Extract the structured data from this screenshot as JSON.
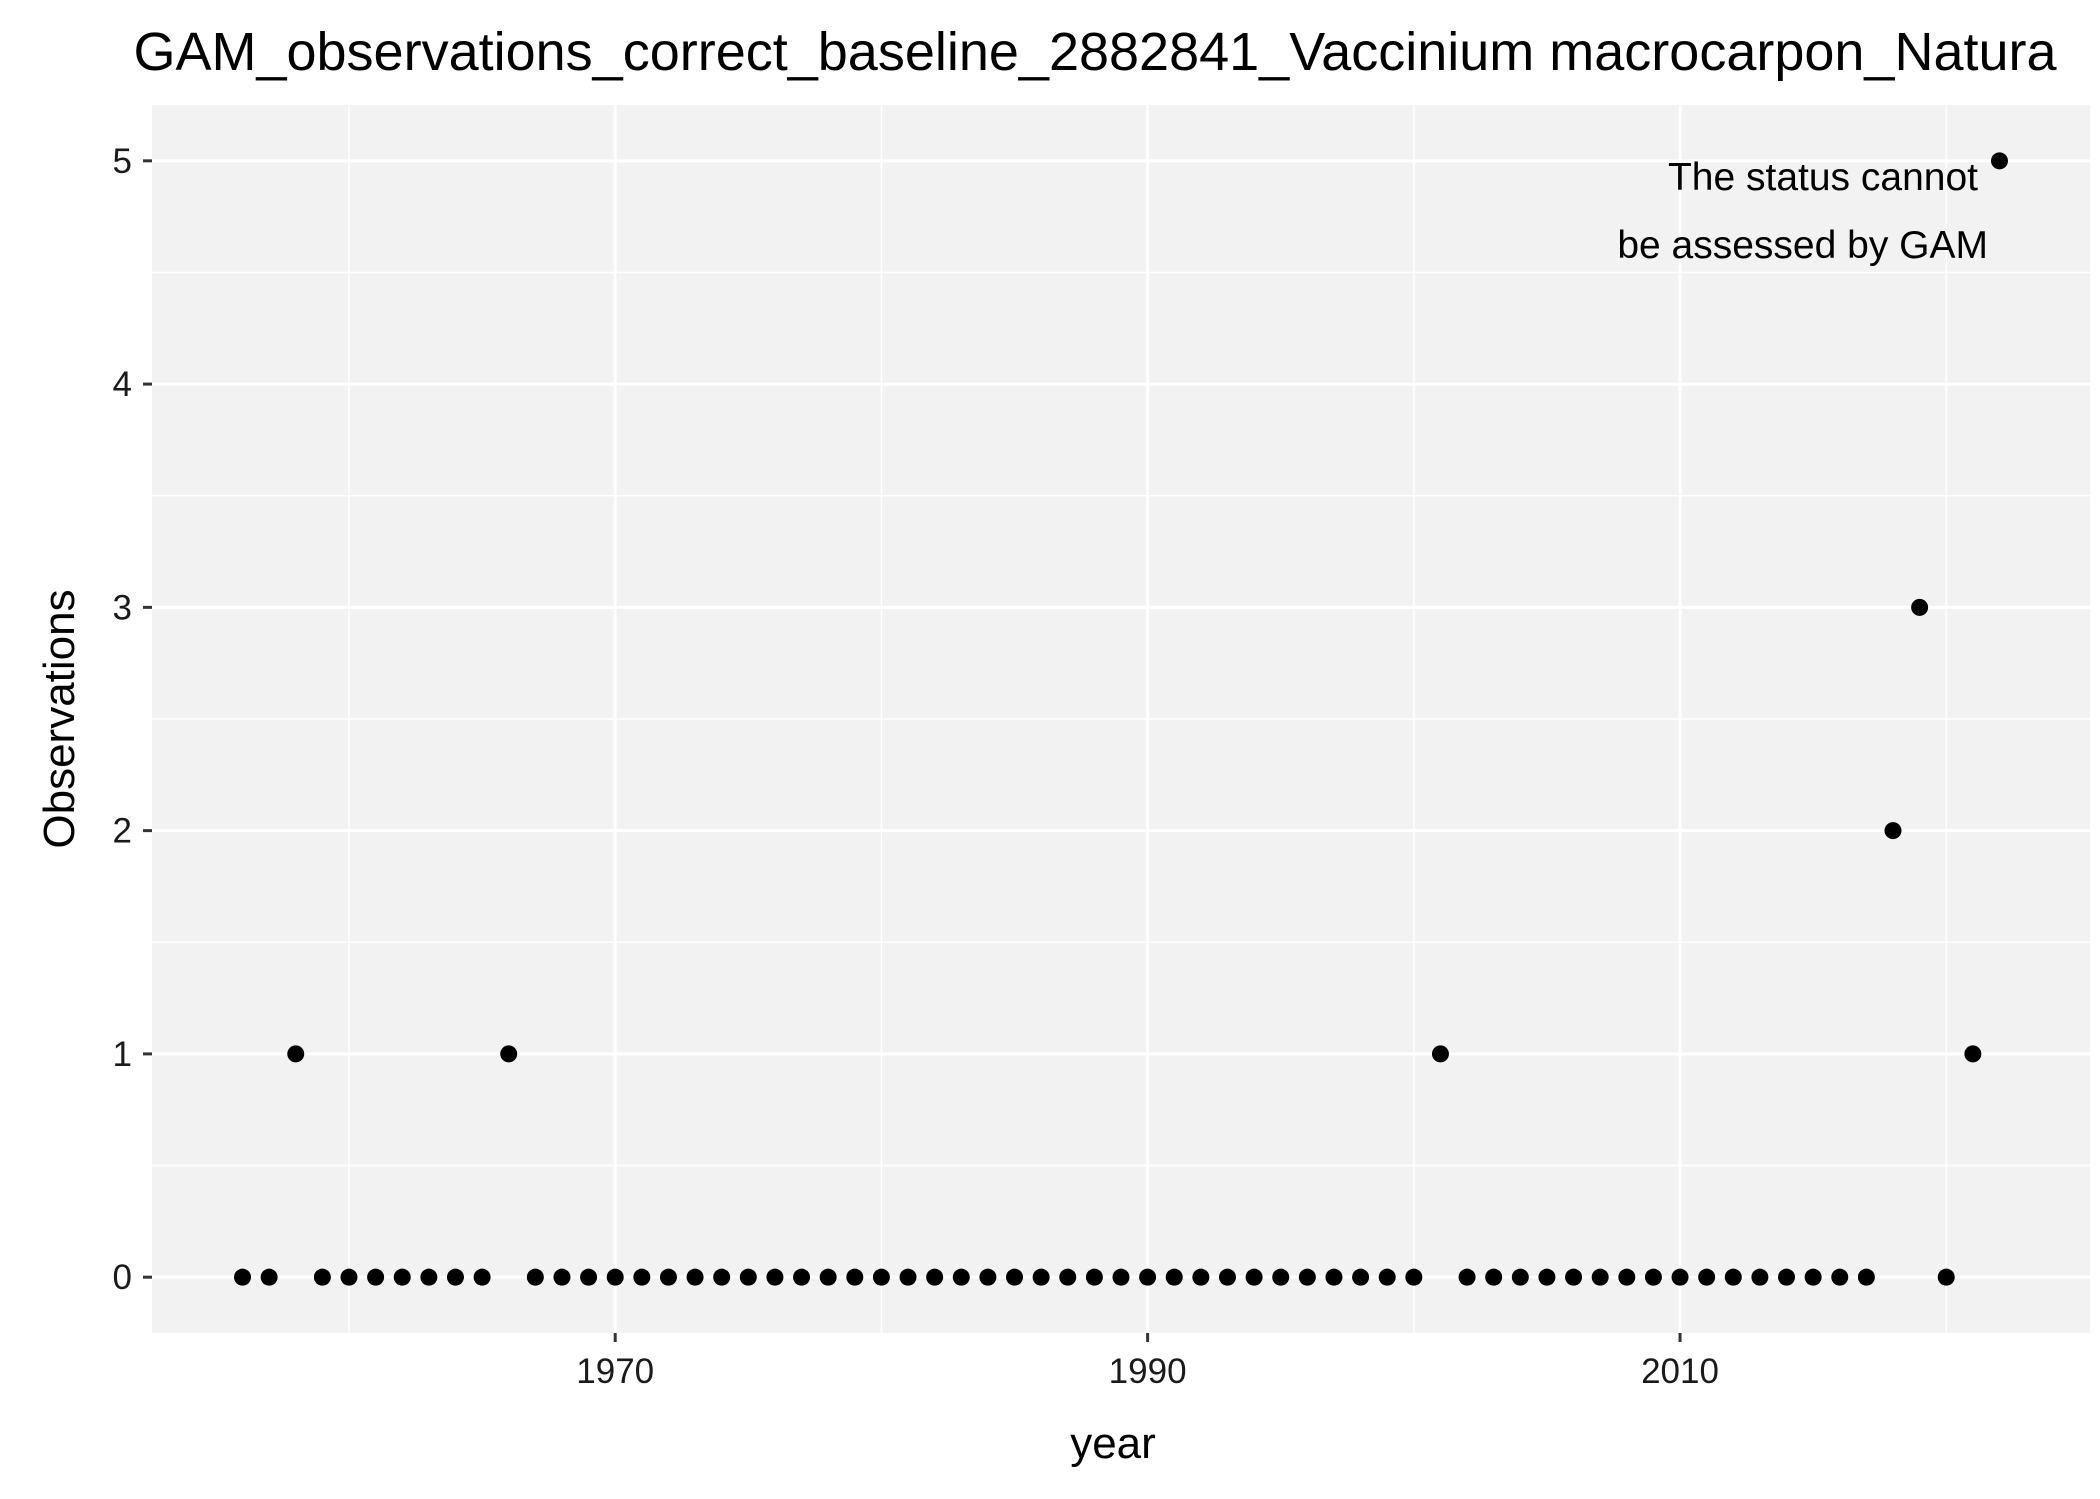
{
  "chart_data": {
    "type": "scatter",
    "title": "GAM_observations_correct_baseline_2882841_Vaccinium macrocarpon_Natura",
    "xlabel": "year",
    "ylabel": "Observations",
    "xlim": [
      1952.6,
      2025.4
    ],
    "ylim": [
      -0.25,
      5.25
    ],
    "xticks": [
      1970,
      1990,
      2010
    ],
    "xtick_labels": [
      "1970",
      "1990",
      "2010"
    ],
    "yticks": [
      0,
      1,
      2,
      3,
      4,
      5
    ],
    "ytick_labels": [
      "0",
      "1",
      "2",
      "3",
      "4",
      "5"
    ],
    "grid": true,
    "legend": "none",
    "point_color": "#000000",
    "panel_color": "#f2f2f2",
    "grid_color": "#ffffff",
    "annotation": {
      "lines": [
        "The status cannot",
        "be assessed by GAM"
      ],
      "x": 2022,
      "y": 5,
      "color": "#ff0000"
    },
    "x": [
      1956,
      1957,
      1958,
      1959,
      1960,
      1961,
      1962,
      1963,
      1964,
      1965,
      1966,
      1967,
      1968,
      1969,
      1970,
      1971,
      1972,
      1973,
      1974,
      1975,
      1976,
      1977,
      1978,
      1979,
      1980,
      1981,
      1982,
      1983,
      1984,
      1985,
      1986,
      1987,
      1988,
      1989,
      1990,
      1991,
      1992,
      1993,
      1994,
      1995,
      1996,
      1997,
      1998,
      1999,
      2000,
      2001,
      2002,
      2003,
      2004,
      2005,
      2006,
      2007,
      2008,
      2009,
      2010,
      2011,
      2012,
      2013,
      2014,
      2015,
      2016,
      2017,
      2018,
      2019,
      2020,
      2021,
      2022
    ],
    "y": [
      0,
      0,
      1,
      0,
      0,
      0,
      0,
      0,
      0,
      0,
      1,
      0,
      0,
      0,
      0,
      0,
      0,
      0,
      0,
      0,
      0,
      0,
      0,
      0,
      0,
      0,
      0,
      0,
      0,
      0,
      0,
      0,
      0,
      0,
      0,
      0,
      0,
      0,
      0,
      0,
      0,
      0,
      0,
      0,
      0,
      1,
      0,
      0,
      0,
      0,
      0,
      0,
      0,
      0,
      0,
      0,
      0,
      0,
      0,
      0,
      0,
      0,
      2,
      3,
      0,
      1,
      5
    ]
  }
}
